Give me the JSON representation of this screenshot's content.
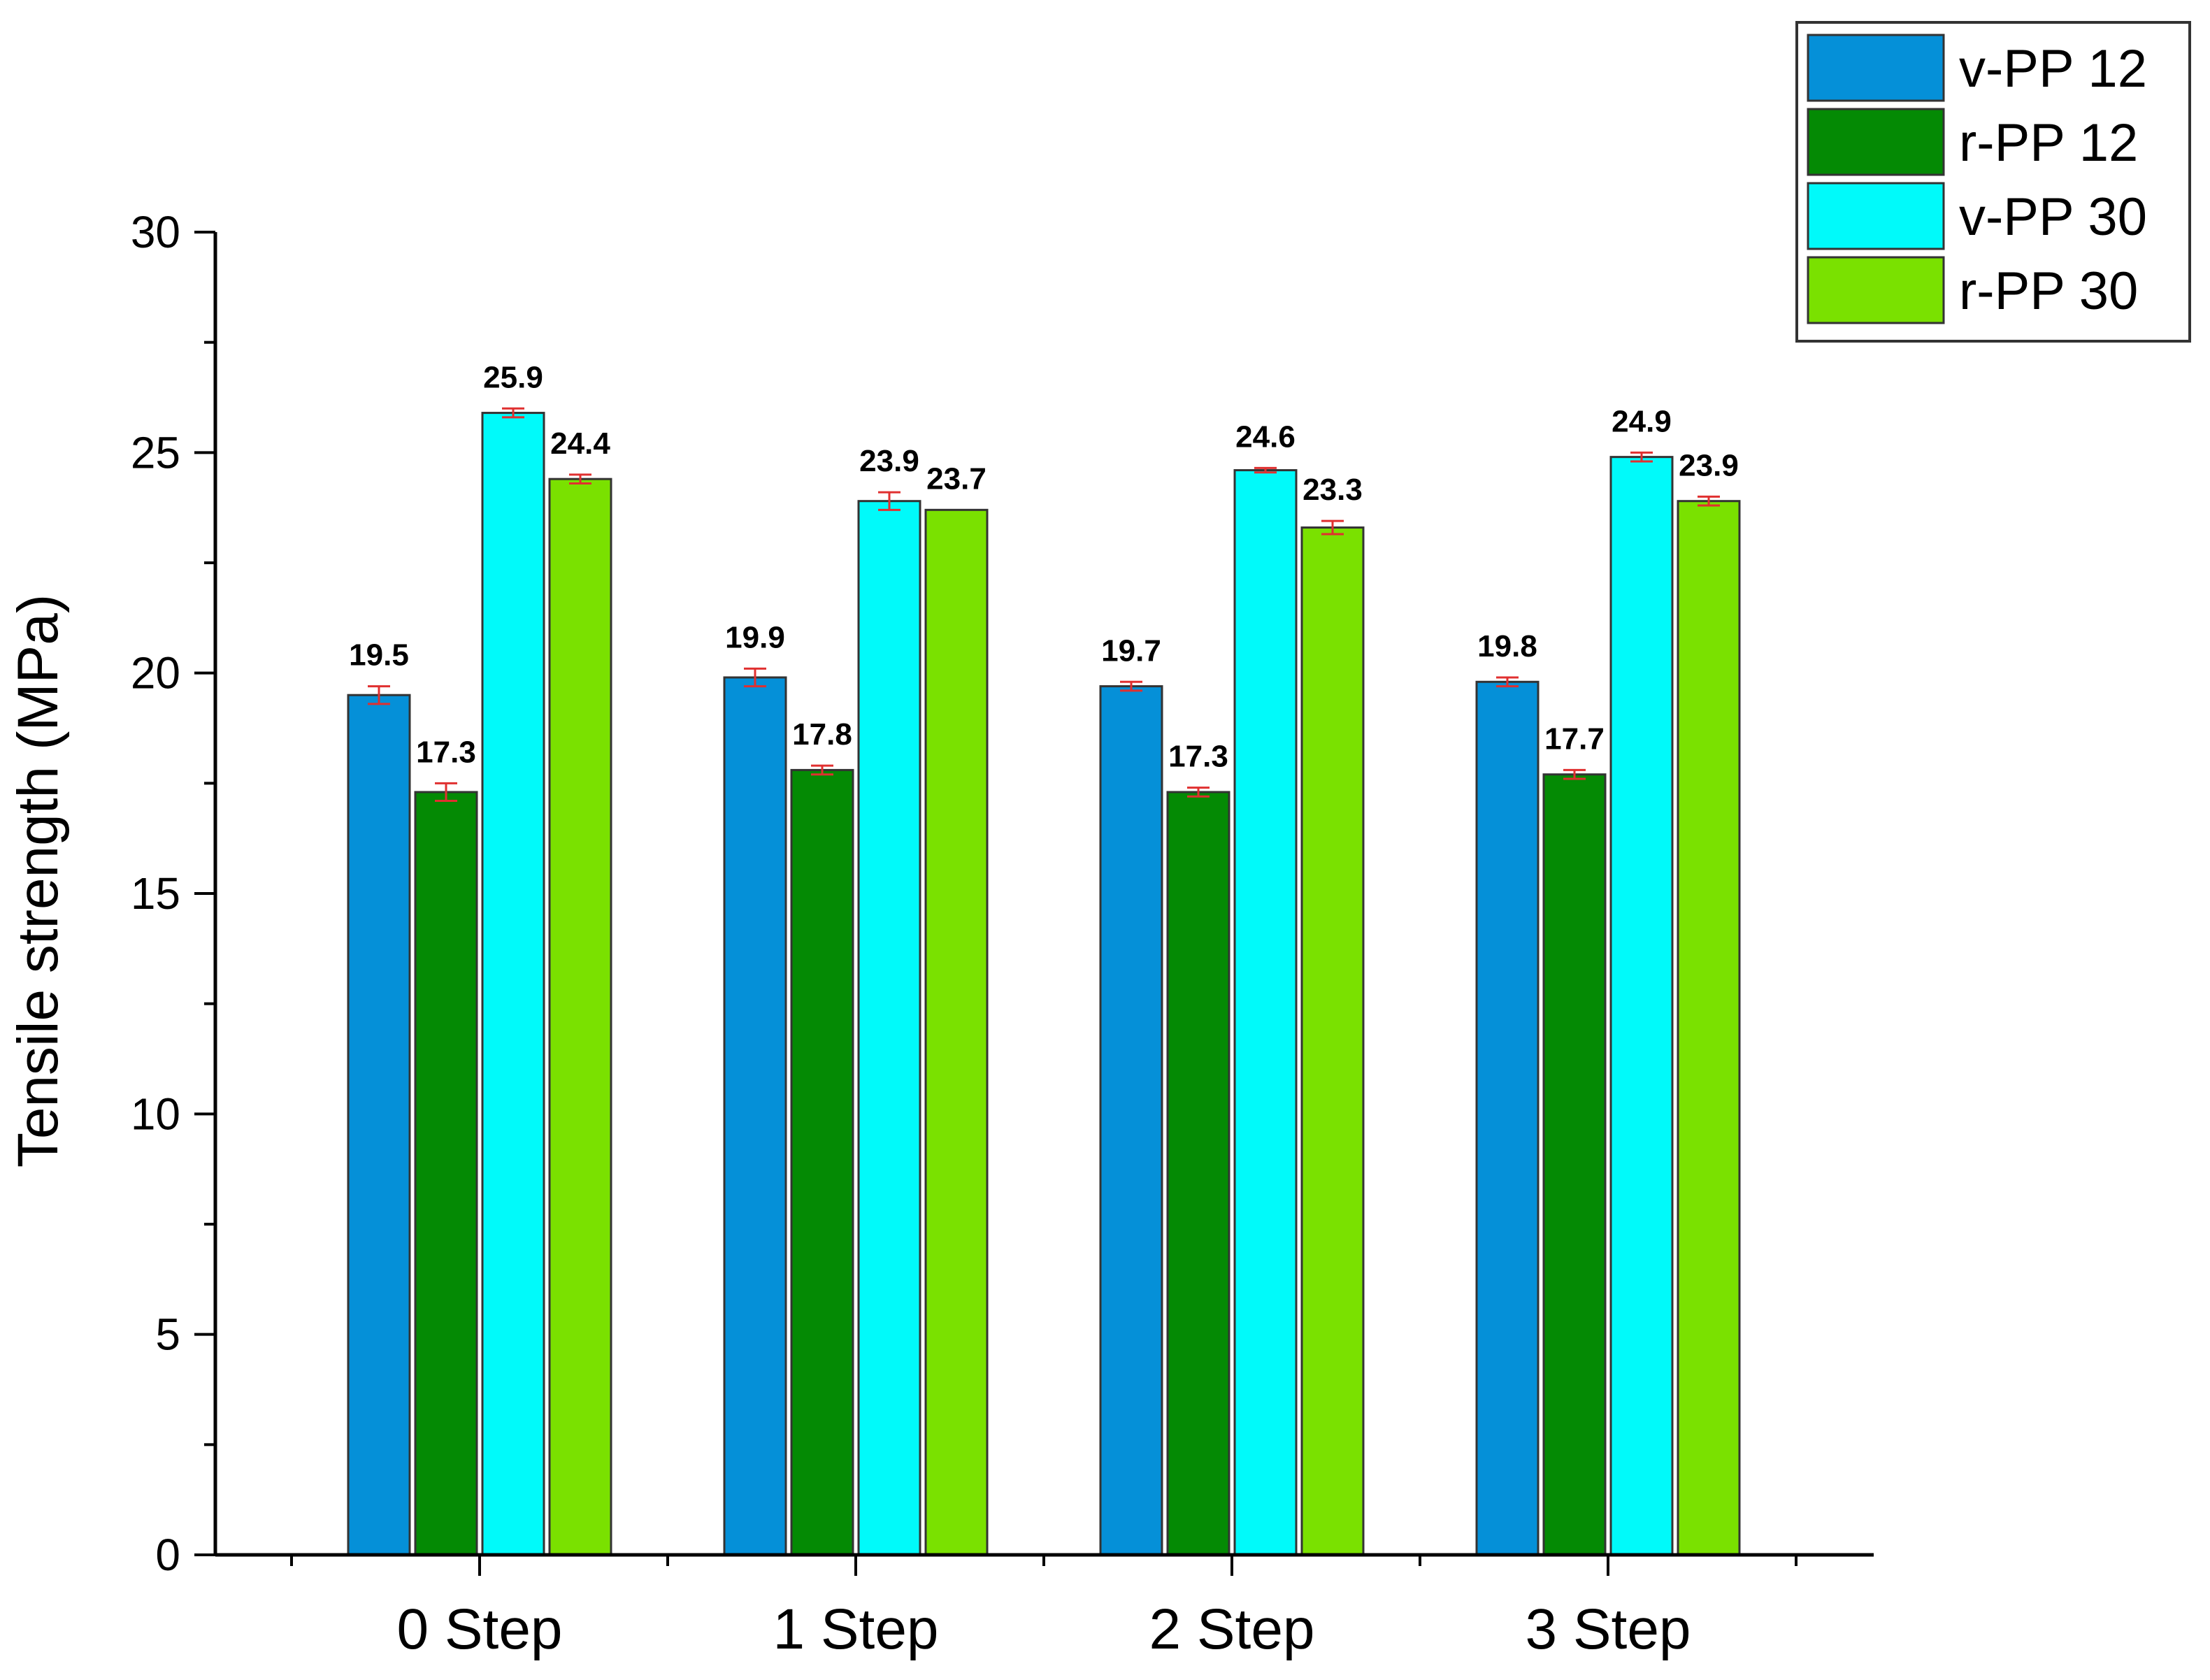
{
  "chart_data": {
    "type": "bar",
    "categories": [
      "0 Step",
      "1 Step",
      "2 Step",
      "3 Step"
    ],
    "series": [
      {
        "name": "v-PP 12",
        "color": "#0590d8",
        "values": [
          19.5,
          19.9,
          19.7,
          19.8
        ],
        "errors": [
          0.2,
          0.2,
          0.1,
          0.1
        ]
      },
      {
        "name": "r-PP 12",
        "color": "#048a04",
        "values": [
          17.3,
          17.8,
          17.3,
          17.7
        ],
        "errors": [
          0.2,
          0.1,
          0.1,
          0.1
        ]
      },
      {
        "name": "v-PP 30",
        "color": "#00fafa",
        "values": [
          25.9,
          23.9,
          24.6,
          24.9
        ],
        "errors": [
          0.1,
          0.2,
          0.05,
          0.1
        ]
      },
      {
        "name": "r-PP 30",
        "color": "#7ae100",
        "values": [
          24.4,
          23.7,
          23.3,
          23.9
        ],
        "errors": [
          0.1,
          0.0,
          0.15,
          0.1
        ]
      }
    ],
    "data_labels": [
      [
        "19.5",
        "19.9",
        "19.7",
        "19.8"
      ],
      [
        "17.3",
        "17.8",
        "17.3",
        "17.7"
      ],
      [
        "25.9",
        "23.9",
        "24.6",
        "24.9"
      ],
      [
        "24.4",
        "23.7",
        "23.3",
        "23.9"
      ]
    ],
    "title": "",
    "xlabel": "",
    "ylabel": "Tensile strength (MPa)",
    "ylim": [
      0,
      30
    ],
    "yticks": [
      0,
      5,
      10,
      15,
      20,
      25,
      30
    ],
    "grid": false,
    "legend": "top-right",
    "error_bar_color": "#e03030"
  }
}
